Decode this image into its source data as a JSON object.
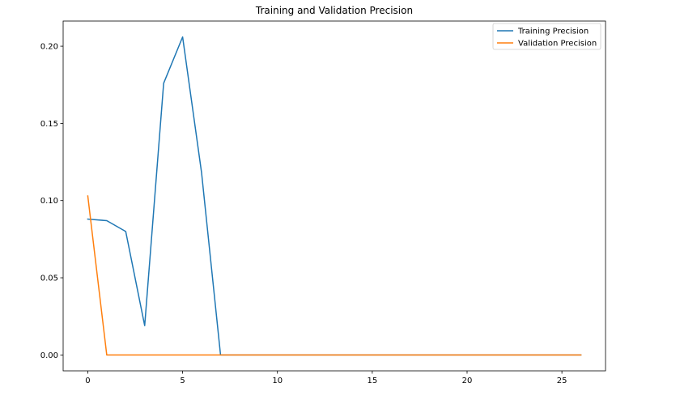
{
  "chart_data": {
    "type": "line",
    "title": "Training and Validation Precision",
    "xlabel": "",
    "ylabel": "",
    "xlim": [
      -1.3,
      27.3
    ],
    "ylim": [
      -0.0103,
      0.2163
    ],
    "x_ticks": [
      0,
      5,
      10,
      15,
      20,
      25
    ],
    "y_ticks": [
      0.0,
      0.05,
      0.1,
      0.15,
      0.2
    ],
    "y_tick_labels": [
      "0.00",
      "0.05",
      "0.10",
      "0.15",
      "0.20"
    ],
    "grid": false,
    "legend_position": "upper right",
    "x": [
      0,
      1,
      2,
      3,
      4,
      5,
      6,
      7,
      8,
      9,
      10,
      11,
      12,
      13,
      14,
      15,
      16,
      17,
      18,
      19,
      20,
      21,
      22,
      23,
      24,
      25,
      26
    ],
    "series": [
      {
        "name": "Training Precision",
        "color": "#1f77b4",
        "values": [
          0.088,
          0.087,
          0.08,
          0.019,
          0.176,
          0.206,
          0.118,
          0.0,
          0.0,
          0.0,
          0.0,
          0.0,
          0.0,
          0.0,
          0.0,
          0.0,
          0.0,
          0.0,
          0.0,
          0.0,
          0.0,
          0.0,
          0.0,
          0.0,
          0.0,
          0.0,
          0.0
        ]
      },
      {
        "name": "Validation Precision",
        "color": "#ff7f0e",
        "values": [
          0.103,
          0.0,
          0.0,
          0.0,
          0.0,
          0.0,
          0.0,
          0.0,
          0.0,
          0.0,
          0.0,
          0.0,
          0.0,
          0.0,
          0.0,
          0.0,
          0.0,
          0.0,
          0.0,
          0.0,
          0.0,
          0.0,
          0.0,
          0.0,
          0.0,
          0.0,
          0.0
        ]
      }
    ]
  }
}
